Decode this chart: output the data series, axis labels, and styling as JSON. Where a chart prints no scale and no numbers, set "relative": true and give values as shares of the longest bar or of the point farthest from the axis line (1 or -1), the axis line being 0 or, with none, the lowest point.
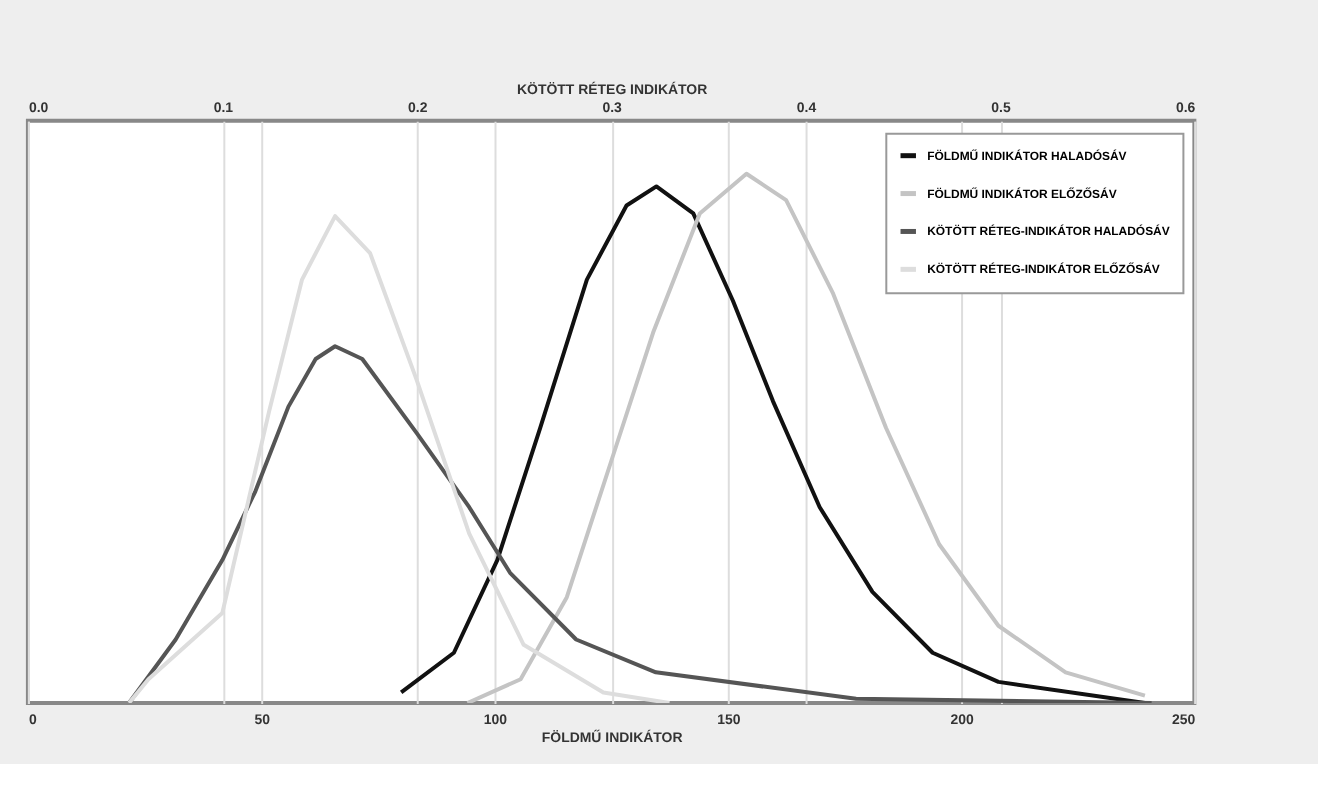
{
  "chart_data": {
    "type": "line",
    "relative": true,
    "xlabel": "FÖLDMŰ INDIKÁTOR",
    "x2label": "KÖTÖTT RÉTEG INDIKÁTOR",
    "xlim": [
      0,
      250
    ],
    "xticks": [
      0,
      50,
      100,
      150,
      200,
      250
    ],
    "x2lim": [
      0,
      0.6
    ],
    "x2ticks": [
      {
        "value": 0,
        "label": "0.0"
      },
      0.1,
      0.2,
      0.3,
      0.4,
      0.5,
      0.6
    ],
    "grid": "x",
    "legend": "top right",
    "line_style": "solid",
    "marker": "none",
    "series": [
      {
        "name": "FÖLDMŰ INDIKÁTOR HALADÓSÁV",
        "color": "#111111",
        "x": [
          80,
          91.3,
          100.6,
          109.8,
          119.8,
          128.3,
          134.7,
          142.6,
          151.1,
          159.7,
          169.7,
          181,
          193.9,
          208,
          239.4
        ],
        "values": [
          0.02,
          0.095,
          0.27,
          0.52,
          0.8,
          0.94,
          0.976,
          0.925,
          0.76,
          0.57,
          0.37,
          0.21,
          0.095,
          0.04,
          0.0
        ]
      },
      {
        "name": "FÖLDMŰ INDIKÁTOR ELŐZŐSÁV",
        "color": "#c4c4c4",
        "x": [
          94.2,
          105.6,
          115.5,
          125.5,
          134,
          144,
          154,
          162.5,
          172.5,
          183.9,
          195.3,
          208,
          222.4,
          239.4
        ],
        "values": [
          0.0,
          0.045,
          0.2,
          0.47,
          0.7,
          0.925,
          1.0,
          0.95,
          0.775,
          0.52,
          0.3,
          0.146,
          0.058,
          0.014
        ]
      },
      {
        "name": "KÖTÖTT RÉTEG-INDIKÁTOR HALADÓSÁV",
        "color": "#555555",
        "axis": "x2",
        "x": [
          0.052,
          0.076,
          0.1,
          0.117,
          0.134,
          0.148,
          0.158,
          0.172,
          0.2,
          0.227,
          0.248,
          0.282,
          0.323,
          0.426,
          0.578
        ],
        "values": [
          0.0,
          0.12,
          0.27,
          0.4,
          0.56,
          0.65,
          0.674,
          0.65,
          0.51,
          0.37,
          0.246,
          0.12,
          0.058,
          0.008,
          0.0
        ]
      },
      {
        "name": "KÖTÖTT RÉTEG-INDIKÁTOR ELŐZŐSÁV",
        "color": "#dddddd",
        "axis": "x2",
        "x": [
          0.052,
          0.062,
          0.1,
          0.124,
          0.141,
          0.158,
          0.176,
          0.2,
          0.227,
          0.255,
          0.296,
          0.33
        ],
        "values": [
          0.0,
          0.045,
          0.17,
          0.55,
          0.8,
          0.92,
          0.85,
          0.61,
          0.32,
          0.11,
          0.02,
          0.0
        ]
      }
    ]
  }
}
